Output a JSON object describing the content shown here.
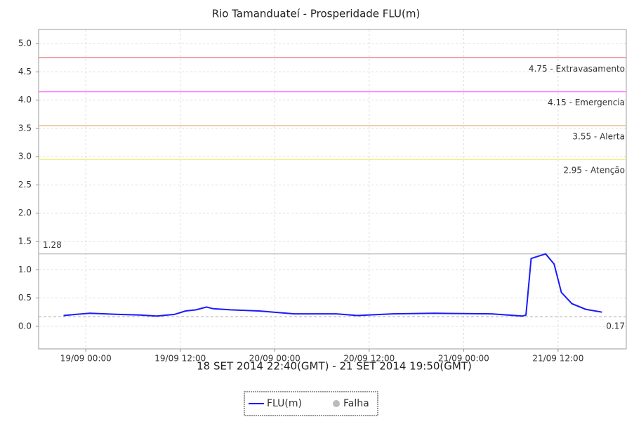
{
  "chart_data": {
    "type": "line",
    "title": "Rio Tamanduateí - Prosperidade FLU(m)",
    "x_label": "18 SET 2014 22:40(GMT) - 21 SET 2014 19:50(GMT)",
    "xlim": [
      "18/09 18:00",
      "21/09 20:40"
    ],
    "xticks": [
      "19/09 00:00",
      "19/09 12:00",
      "20/09 00:00",
      "20/09 12:00",
      "21/09 00:00",
      "21/09 12:00"
    ],
    "ylim": [
      -0.4,
      5.25
    ],
    "yticks": [
      {
        "value": 0,
        "label": "0.0"
      },
      0.5,
      {
        "value": 1,
        "label": "1.0"
      },
      1.5,
      {
        "value": 2,
        "label": "2.0"
      },
      2.5,
      {
        "value": 3,
        "label": "3.0"
      },
      3.5,
      {
        "value": 4,
        "label": "4.0"
      },
      4.5,
      {
        "value": 5,
        "label": "5.0"
      }
    ],
    "grid": true,
    "series": [
      {
        "name": "FLU(m)",
        "color": "#1a1aff",
        "x": [
          "18/09 21:10",
          "18/09 22:45",
          "19/09 00:30",
          "19/09 04:06",
          "19/09 06:50",
          "19/09 09:00",
          "19/09 11:15",
          "19/09 12:40",
          "19/09 14:00",
          "19/09 15:20",
          "19/09 16:10",
          "19/09 18:25",
          "19/09 22:00",
          "20/09 02:30",
          "20/09 07:50",
          "20/09 10:30",
          "20/09 15:00",
          "20/09 20:20",
          "21/09 03:30",
          "21/09 07:30",
          "21/09 07:55",
          "21/09 08:35",
          "21/09 09:45",
          "21/09 10:25",
          "21/09 11:30",
          "21/09 12:25",
          "21/09 13:45",
          "21/09 15:30",
          "21/09 17:35"
        ],
        "values": [
          0.19,
          0.21,
          0.23,
          0.21,
          0.2,
          0.18,
          0.21,
          0.27,
          0.29,
          0.34,
          0.31,
          0.29,
          0.27,
          0.22,
          0.22,
          0.19,
          0.22,
          0.23,
          0.22,
          0.18,
          0.2,
          1.2,
          1.25,
          1.28,
          1.1,
          0.6,
          0.4,
          0.3,
          0.25
        ]
      }
    ],
    "legend_extra": {
      "name": "Falha",
      "color": "#bbbbbb"
    },
    "thresholds": [
      {
        "value": 4.75,
        "label": "4.75 - Extravasamento",
        "color": "#f08080"
      },
      {
        "value": 4.15,
        "label": "4.15 - Emergencia",
        "color": "#ff80ff"
      },
      {
        "value": 3.55,
        "label": "3.55 - Alerta",
        "color": "#f0c090"
      },
      {
        "value": 2.95,
        "label": "2.95 - Atenção",
        "color": "#f0f080"
      }
    ],
    "max_line": {
      "value": 1.28,
      "label": "1.28",
      "color": "#aaaaaa"
    },
    "min_line": {
      "value": 0.17,
      "label": "0.17",
      "color": "#aaaaaa"
    }
  }
}
